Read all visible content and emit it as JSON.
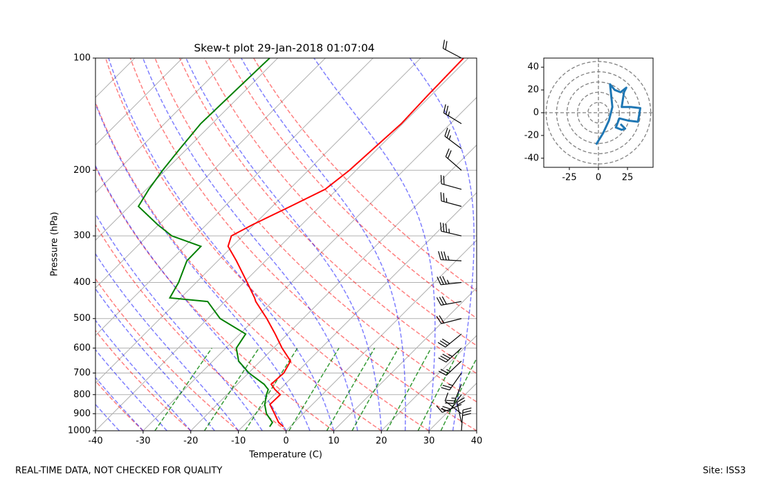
{
  "chart_data": [
    {
      "type": "skewt",
      "title": "Skew-t plot 29-Jan-2018 01:07:04",
      "xlabel": "Temperature (C)",
      "ylabel": "Pressure (hPa)",
      "pressure": [
        975,
        950,
        900,
        850,
        800,
        775,
        750,
        700,
        650,
        600,
        550,
        500,
        450,
        440,
        400,
        350,
        320,
        300,
        280,
        250,
        225,
        200,
        175,
        150,
        125,
        100
      ],
      "series": [
        {
          "color": "#ff0000",
          "values": [
            -1.4,
            -3.3,
            -6.0,
            -8.9,
            -8.8,
            -11.0,
            -12.9,
            -12.6,
            -13.7,
            -18.2,
            -22.6,
            -27.6,
            -33.5,
            -34.5,
            -39.3,
            -46.1,
            -50.9,
            -52.4,
            -50.3,
            -46.2,
            -42.5,
            -41.4,
            -40.9,
            -40.3,
            -40.7,
            -41.0
          ]
        },
        {
          "color": "#008000",
          "values": [
            -4.3,
            -4.6,
            -7.7,
            -10.0,
            -11.7,
            -12.4,
            -14.4,
            -19.9,
            -24.6,
            -27.8,
            -28.8,
            -37.4,
            -43.6,
            -52.3,
            -53.7,
            -56.5,
            -56.6,
            -64.9,
            -70.2,
            -78.1,
            -79.5,
            -80.6,
            -81.5,
            -82.4,
            -82.1,
            -81.7
          ]
        }
      ],
      "xlim": [
        -40,
        40
      ],
      "xticks": [
        -40,
        -30,
        -20,
        -10,
        0,
        10,
        20,
        30,
        40
      ],
      "ylim": [
        1000,
        100
      ],
      "yticks": [
        100,
        200,
        300,
        400,
        500,
        600,
        700,
        800,
        900,
        1000
      ],
      "log_y": true,
      "skew_angle": 45,
      "grid": true,
      "dry_adiabats": [
        -40,
        -30,
        -20,
        -10,
        0,
        10,
        20,
        30,
        40,
        50,
        60,
        70,
        80,
        90
      ],
      "moist_adiabats": [
        -40,
        -35,
        -30,
        -25,
        -20,
        -15,
        -10,
        -5,
        0,
        5,
        10,
        15,
        20,
        25,
        30,
        35,
        40
      ],
      "mixing_ratios": [
        0.0004,
        0.001,
        0.002,
        0.004,
        0.007,
        0.01,
        0.016,
        0.024,
        0.032
      ],
      "mixing_ratio_top": 600,
      "barb_pressure": [
        1000,
        950,
        900,
        850,
        800,
        750,
        700,
        650,
        600,
        550,
        500,
        450,
        400,
        350,
        300,
        250,
        225,
        200,
        175,
        150,
        100
      ]
    },
    {
      "type": "hodograph",
      "u": [
        -2,
        4,
        9,
        12,
        11,
        10,
        14,
        19,
        24,
        22,
        20,
        28,
        36,
        35,
        34,
        26,
        18,
        15,
        20,
        23,
        19
      ],
      "v": [
        -28,
        -18,
        -7,
        5,
        15,
        25,
        20,
        18,
        22,
        18,
        5,
        5,
        4,
        -2,
        -8,
        -7,
        -5,
        -13,
        -15,
        -14,
        -10
      ],
      "color": "#1f77b4",
      "xlim": [
        -47,
        47
      ],
      "xticks": [
        -25,
        0,
        25
      ],
      "ylim": [
        -48,
        48
      ],
      "yticks": [
        -40,
        -20,
        0,
        20,
        40
      ],
      "rings": [
        9,
        18,
        27,
        36,
        45
      ]
    }
  ],
  "footer": {
    "left": "REAL-TIME DATA, NOT CHECKED FOR QUALITY",
    "right": "Site: ISS3"
  }
}
